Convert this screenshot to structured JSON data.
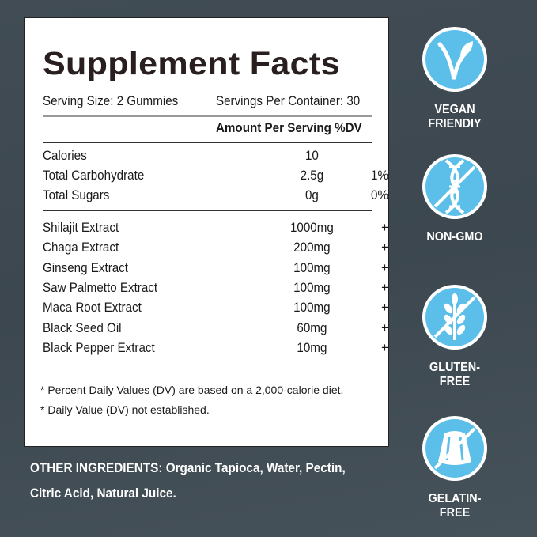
{
  "facts": {
    "title": "Supplement Facts",
    "serving_size": "Serving Size: 2 Gummies",
    "servings_per_container": "Servings Per Container: 30",
    "amount_header": "Amount Per Serving %DV",
    "nutrients": [
      {
        "name": "Calories",
        "amount": "10",
        "dv": ""
      },
      {
        "name": "Total Carbohydrate",
        "amount": "2.5g",
        "dv": "1%"
      },
      {
        "name": "Total Sugars",
        "amount": "0g",
        "dv": "0%"
      }
    ],
    "ingredients": [
      {
        "name": "Shilajit Extract",
        "amount": "1000mg",
        "dv": "+"
      },
      {
        "name": "Chaga Extract",
        "amount": "200mg",
        "dv": "+"
      },
      {
        "name": "Ginseng Extract",
        "amount": "100mg",
        "dv": "+"
      },
      {
        "name": "Saw Palmetto Extract",
        "amount": "100mg",
        "dv": "+"
      },
      {
        "name": "Maca Root Extract",
        "amount": "100mg",
        "dv": "+"
      },
      {
        "name": "Black Seed Oil",
        "amount": "60mg",
        "dv": "+"
      },
      {
        "name": "Black Pepper Extract",
        "amount": "10mg",
        "dv": "+"
      }
    ],
    "footnotes": [
      "* Percent Daily Values (DV) are based on a 2,000-calorie diet.",
      "* Daily Value (DV) not established."
    ]
  },
  "other_ingredients": "OTHER INGREDIENTS: Organic Tapioca, Water, Pectin, Citric Acid, Natural Juice.",
  "badges": [
    {
      "icon": "vegan-leaf-icon",
      "label1": "VEGAN",
      "label2": "FRIENDIY"
    },
    {
      "icon": "dna-crossed-icon",
      "label1": "NON-GMO",
      "label2": ""
    },
    {
      "icon": "wheat-crossed-icon",
      "label1": "GLUTEN-FREE",
      "label2": ""
    },
    {
      "icon": "gelatin-crossed-icon",
      "label1": "GELATIN-FREE",
      "label2": ""
    }
  ],
  "colors": {
    "background": "#3f4a52",
    "badge_blue": "#5bbfea",
    "title": "#2a1f1f"
  }
}
